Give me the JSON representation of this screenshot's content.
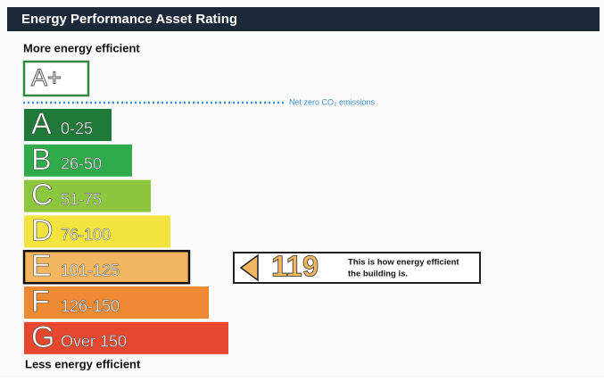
{
  "header": {
    "title": "Energy Performance Asset Rating"
  },
  "top_label": "More energy efficient",
  "bottom_label": "Less energy efficient",
  "plus_rating": {
    "label": "A+",
    "color": "#2e8b3e"
  },
  "net_zero": {
    "label": "Net zero CO₂ emissions",
    "color": "#3a8fd0"
  },
  "bands": [
    {
      "letter": "A",
      "range": "0-25",
      "color": "#1f7a3a"
    },
    {
      "letter": "B",
      "range": "26-50",
      "color": "#2fab4b"
    },
    {
      "letter": "C",
      "range": "51-75",
      "color": "#8dc63f"
    },
    {
      "letter": "D",
      "range": "76-100",
      "color": "#f2e33f"
    },
    {
      "letter": "E",
      "range": "101-125",
      "color": "#f2b560",
      "highlight": true
    },
    {
      "letter": "F",
      "range": "126-150",
      "color": "#ed8a33"
    },
    {
      "letter": "G",
      "range": "Over 150",
      "color": "#e6482f"
    }
  ],
  "indicator": {
    "value": "119",
    "color": "#f2b560",
    "text": [
      "This is how energy efficient",
      "the building is."
    ]
  }
}
